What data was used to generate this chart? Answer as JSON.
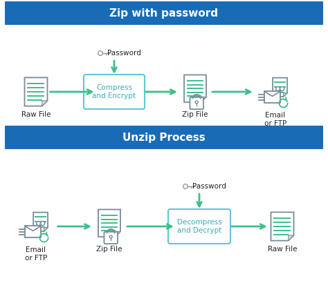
{
  "title1": "Zip with password",
  "title2": "Unzip Process",
  "header_color": "#1A6BB5",
  "header_text_color": "#FFFFFF",
  "arrow_color": "#3DBE8B",
  "box_border_color": "#5CC8D8",
  "box_text_color": "#3AABB8",
  "icon_color": "#7A8A99",
  "green_line_color": "#3DBE8B",
  "bg_color": "#FFFFFF",
  "password_color": "#999999",
  "label_color": "#222222",
  "row1_labels": [
    "Raw File",
    "Compress\nand Encrypt",
    "Zip File",
    "Email\nor FTP"
  ],
  "row2_labels": [
    "Email\nor FTP",
    "Zip File",
    "Decompress\nand Decrypt",
    "Raw File"
  ],
  "password_label": "Password",
  "fig_w": 4.74,
  "fig_h": 4.23,
  "dpi": 100
}
